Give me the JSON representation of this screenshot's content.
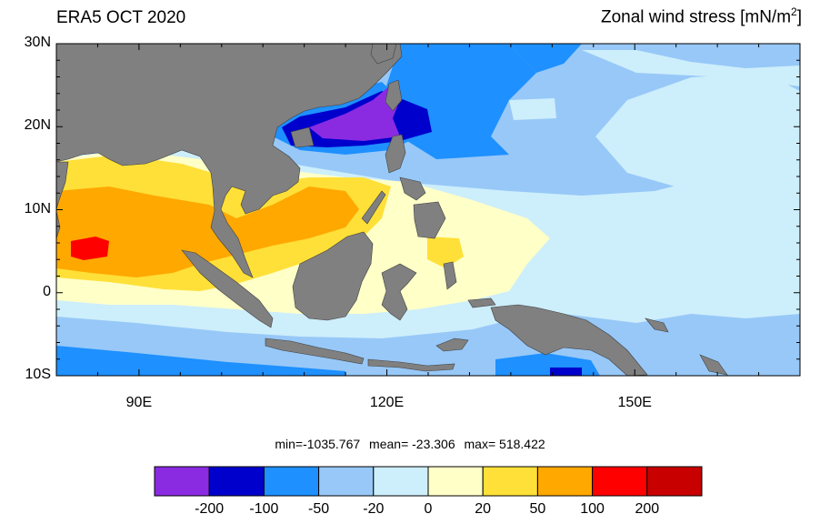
{
  "title": "ERA5 OCT 2020",
  "variable_label": "Zonal wind stress [mN/m",
  "variable_sup": "2",
  "variable_close": "]",
  "axes": {
    "lat_labels": [
      "30N",
      "20N",
      "10N",
      "0",
      "10S"
    ],
    "lon_labels": [
      "90E",
      "120E",
      "150E"
    ]
  },
  "stats": {
    "min": "min=-1035.767",
    "mean": "mean= -23.306",
    "max": "max= 518.422"
  },
  "colorbar": {
    "colors": [
      "#8a2be2",
      "#0000cd",
      "#1e90ff",
      "#97c8f8",
      "#cdeefb",
      "#ffffc8",
      "#ffe038",
      "#ffa800",
      "#ff0000",
      "#c80000"
    ],
    "labels": [
      "-200",
      "-100",
      "-50",
      "-20",
      "0",
      "20",
      "50",
      "100",
      "200"
    ]
  },
  "land_color": "#808080"
}
